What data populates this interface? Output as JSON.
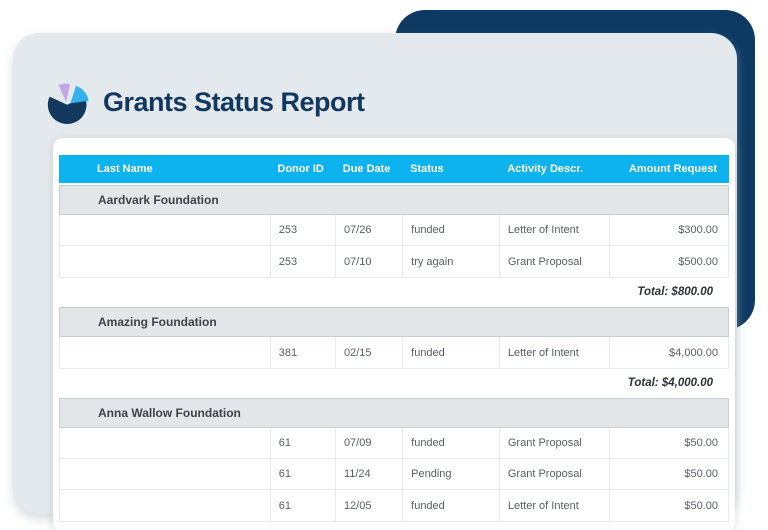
{
  "header": {
    "title": "Grants Status Report",
    "logo": {
      "icon": "pie-chart-logo",
      "colors": {
        "primary_navy": "#14395e",
        "accent_blue": "#35b2eb",
        "accent_purple": "#c2a7e8"
      }
    }
  },
  "table": {
    "columns": [
      "Last Name",
      "Donor ID",
      "Due Date",
      "Status",
      "Activity Descr.",
      "Amount Request"
    ],
    "groups": [
      {
        "name": "Aardvark Foundation",
        "rows": [
          {
            "last_name": "",
            "donor_id": "253",
            "due_date": "07/26",
            "status": "funded",
            "activity_descr": "Letter of Intent",
            "amount_request": "$300.00"
          },
          {
            "last_name": "",
            "donor_id": "253",
            "due_date": "07/10",
            "status": "try again",
            "activity_descr": "Grant Proposal",
            "amount_request": "$500.00"
          }
        ],
        "total": "Total: $800.00"
      },
      {
        "name": "Amazing Foundation",
        "rows": [
          {
            "last_name": "",
            "donor_id": "381",
            "due_date": "02/15",
            "status": "funded",
            "activity_descr": "Letter of Intent",
            "amount_request": "$4,000.00"
          }
        ],
        "total": "Total: $4,000.00"
      },
      {
        "name": "Anna Wallow Foundation",
        "rows": [
          {
            "last_name": "",
            "donor_id": "61",
            "due_date": "07/09",
            "status": "funded",
            "activity_descr": "Grant Proposal",
            "amount_request": "$50.00"
          },
          {
            "last_name": "",
            "donor_id": "61",
            "due_date": "11/24",
            "status": "Pending",
            "activity_descr": "Grant Proposal",
            "amount_request": "$50.00"
          },
          {
            "last_name": "",
            "donor_id": "61",
            "due_date": "12/05",
            "status": "funded",
            "activity_descr": "Letter of Intent",
            "amount_request": "$50.00"
          }
        ],
        "total": ""
      }
    ]
  },
  "colors": {
    "table_header_bg": "#0db3ef",
    "navy_card": "#0d3a63",
    "card_bg": "#e4e9ed",
    "group_header_bg": "#e3e7ea",
    "title_text": "#11395f",
    "total_text": "#2e3338"
  }
}
